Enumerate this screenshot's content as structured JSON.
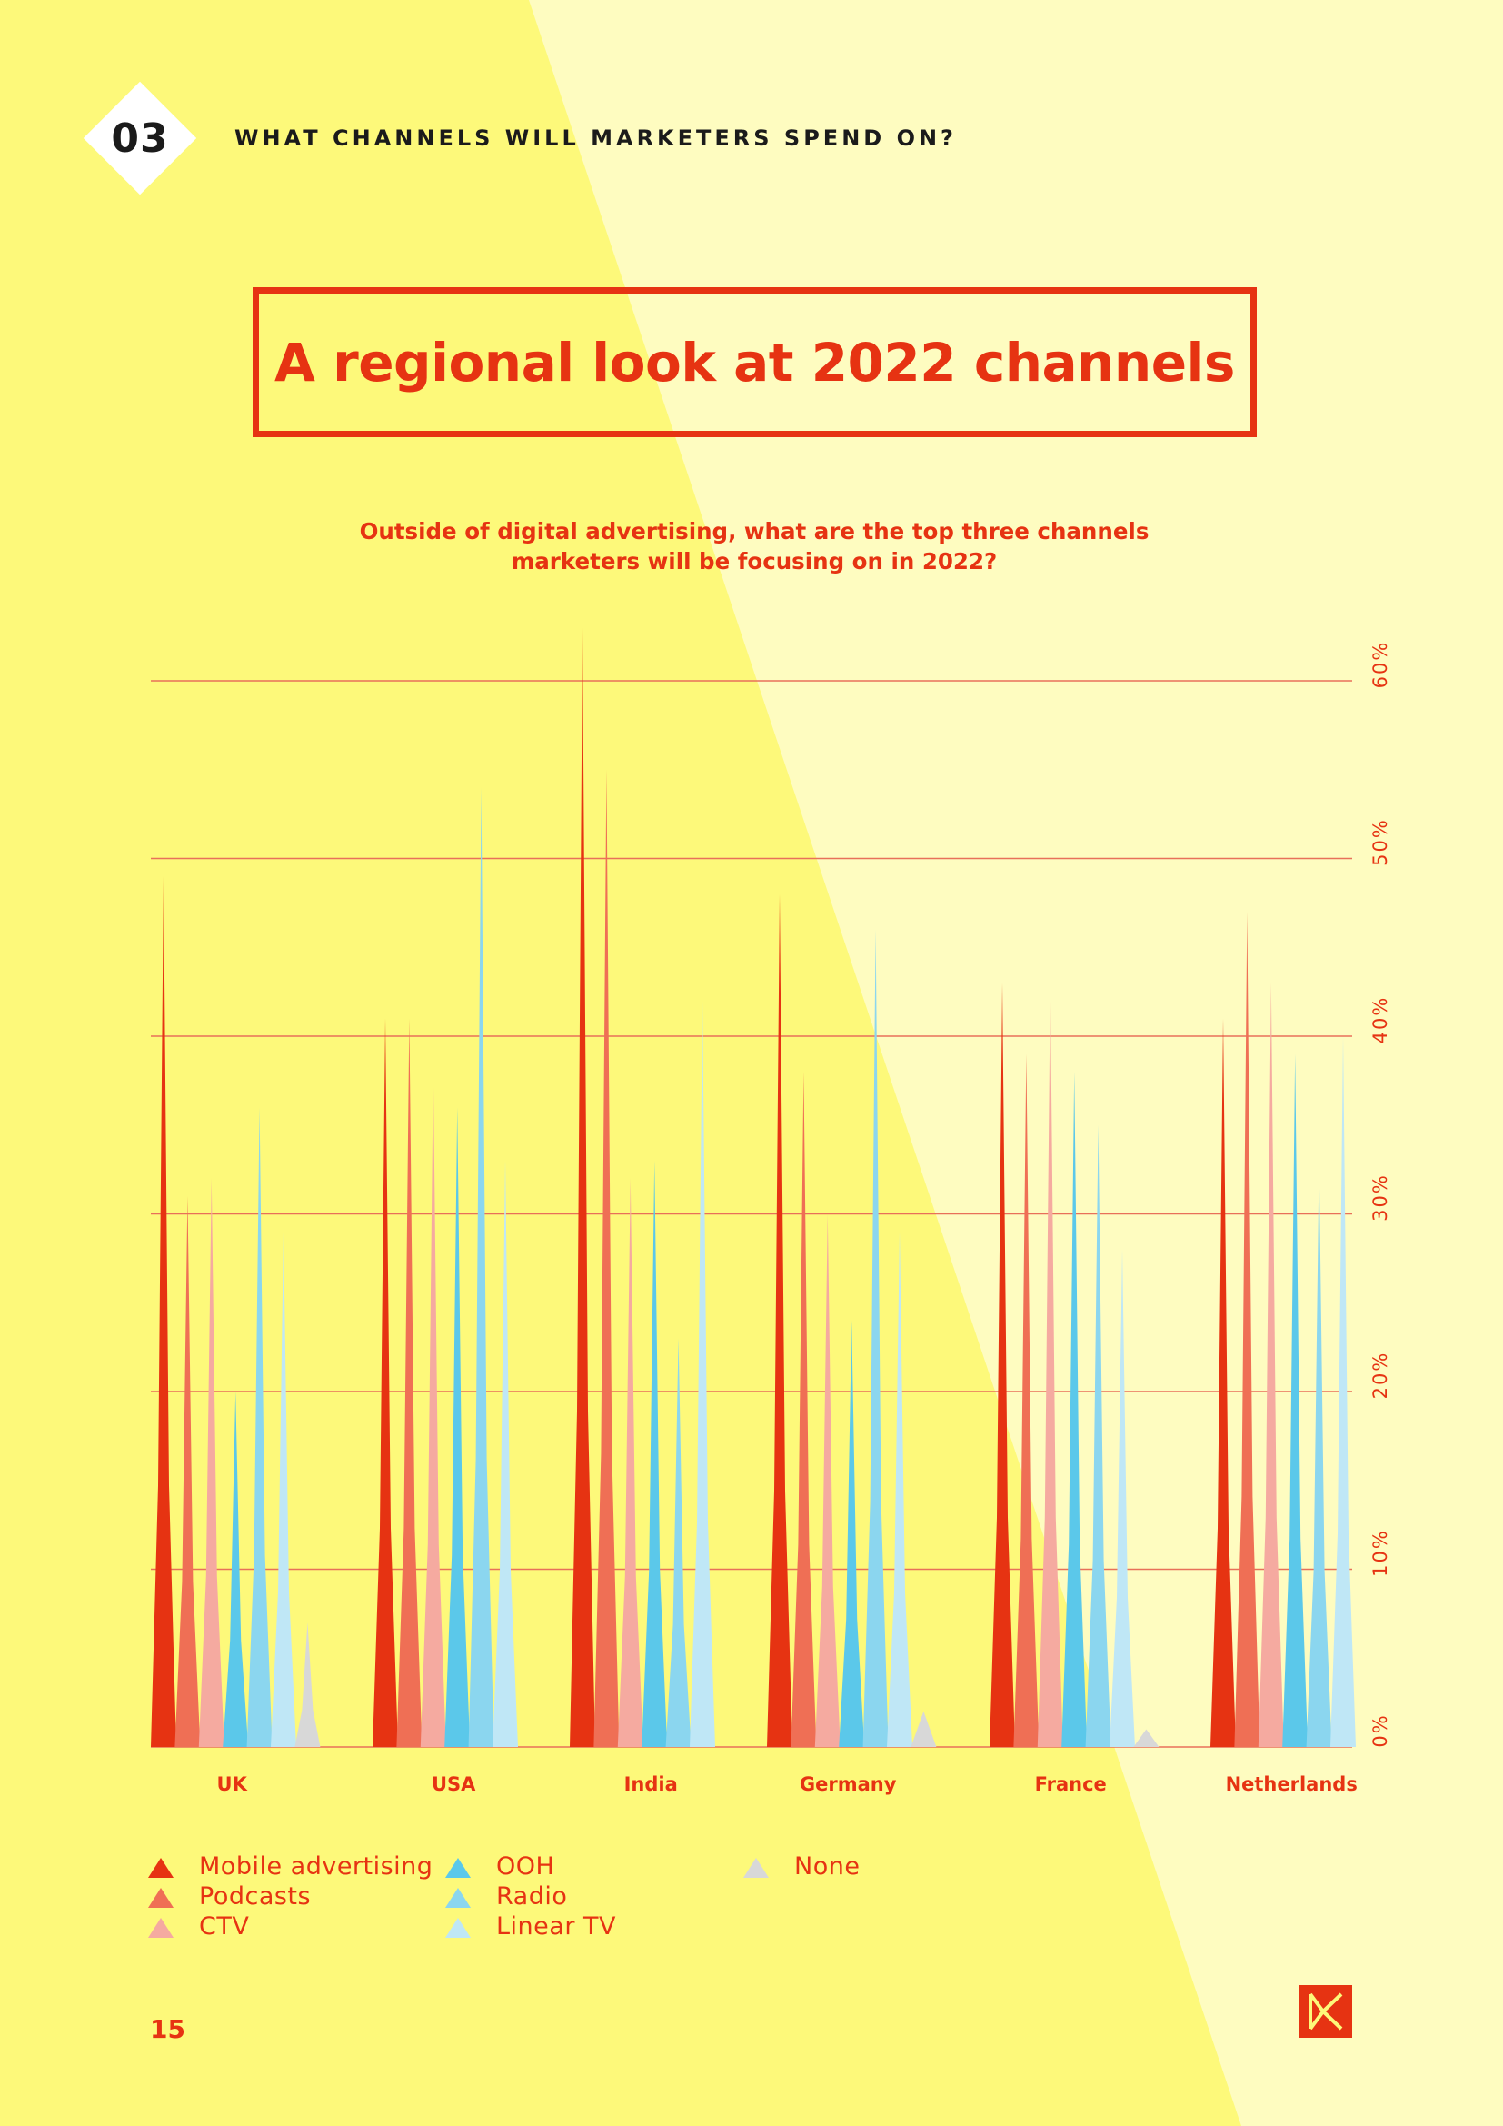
{
  "section": {
    "number": "03",
    "title": "WHAT CHANNELS WILL MARKETERS SPEND ON?"
  },
  "headline": "A regional look at 2022 channels",
  "question": {
    "line1": "Outside of digital advertising, what are the top three channels",
    "line2": "marketers will be focusing on in 2022?"
  },
  "page_number": "15",
  "colors": {
    "background_yellow": "#fdf97a",
    "background_light": "#fefcc0",
    "accent_red": "#e63312"
  },
  "chart_data": {
    "type": "bar",
    "title": "Outside of digital advertising, what are the top three channels marketers will be focusing on in 2022?",
    "xlabel": "",
    "ylabel": "",
    "ylim": [
      0,
      60
    ],
    "yticks": [
      0,
      10,
      20,
      30,
      40,
      50,
      60
    ],
    "ytick_labels": [
      "0%",
      "10%",
      "20%",
      "30%",
      "40%",
      "50%",
      "60%"
    ],
    "grid": true,
    "axis_position": "right",
    "categories": [
      "UK",
      "USA",
      "India",
      "Germany",
      "France",
      "Netherlands"
    ],
    "series": [
      {
        "name": "Mobile advertising",
        "color": "#e63312",
        "values": [
          49,
          41,
          63,
          48,
          43,
          41
        ]
      },
      {
        "name": "Podcasts",
        "color": "#ef6f55",
        "values": [
          31,
          41,
          55,
          38,
          39,
          47
        ]
      },
      {
        "name": "CTV",
        "color": "#f5aaa0",
        "values": [
          32,
          38,
          32,
          30,
          43,
          43
        ]
      },
      {
        "name": "OOH",
        "color": "#5bc8ea",
        "values": [
          20,
          36,
          33,
          24,
          38,
          39
        ]
      },
      {
        "name": "Radio",
        "color": "#8bd6ef",
        "values": [
          36,
          54,
          23,
          46,
          35,
          33
        ]
      },
      {
        "name": "Linear TV",
        "color": "#bfe7f6",
        "values": [
          29,
          33,
          42,
          29,
          28,
          40
        ]
      },
      {
        "name": "None",
        "color": "#d8d8d8",
        "values": [
          7,
          null,
          null,
          2,
          1,
          null
        ]
      }
    ],
    "legend": [
      [
        "Mobile advertising",
        "Podcasts",
        "CTV"
      ],
      [
        "OOH",
        "Radio",
        "Linear TV"
      ],
      [
        "None"
      ]
    ]
  }
}
